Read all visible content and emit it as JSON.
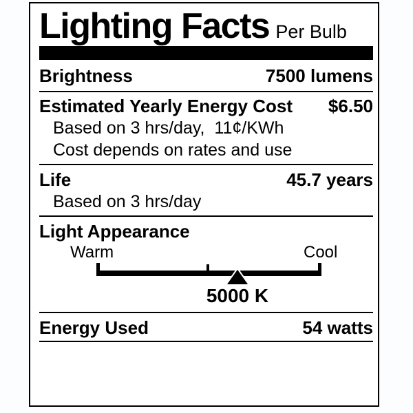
{
  "label": {
    "title": "Lighting Facts",
    "subtitle": "Per Bulb",
    "colors": {
      "ink": "#000000",
      "paper": "#ffffff"
    },
    "brightness": {
      "name": "Brightness",
      "value": "7500 lumens"
    },
    "energy_cost": {
      "name": "Estimated Yearly Energy Cost",
      "value": "$6.50",
      "note_basis": "Based on 3 hrs/day,  11¢/KWh",
      "note_disclaimer": "Cost depends on rates and use"
    },
    "life": {
      "name": "Life",
      "value": "45.7 years",
      "note_basis": "Based on 3 hrs/day"
    },
    "light_appearance": {
      "name": "Light Appearance",
      "warm_label": "Warm",
      "cool_label": "Cool",
      "value_label": "5000 K",
      "marker_position_pct": 62.7
    },
    "energy_used": {
      "name": "Energy Used",
      "value": "54 watts"
    }
  }
}
